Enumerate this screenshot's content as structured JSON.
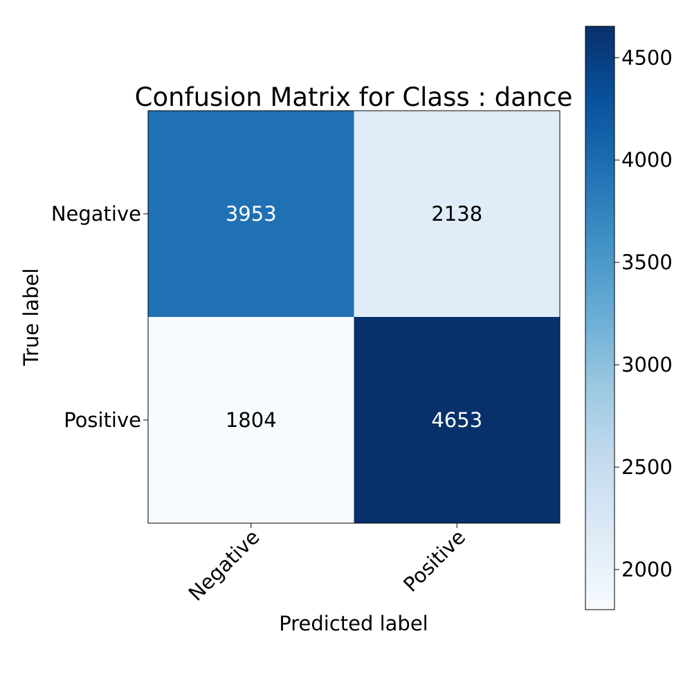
{
  "chart_data": {
    "type": "heatmap",
    "title": "Confusion Matrix for Class : dance",
    "xlabel": "Predicted label",
    "ylabel": "True label",
    "x_categories": [
      "Negative",
      "Positive"
    ],
    "y_categories": [
      "Negative",
      "Positive"
    ],
    "values": [
      [
        3953,
        2138
      ],
      [
        1804,
        4653
      ]
    ],
    "colormap": "Blues",
    "colorbar": {
      "min": 1804,
      "max": 4653,
      "ticks": [
        2000,
        2500,
        3000,
        3500,
        4000,
        4500
      ]
    },
    "grid": false
  }
}
